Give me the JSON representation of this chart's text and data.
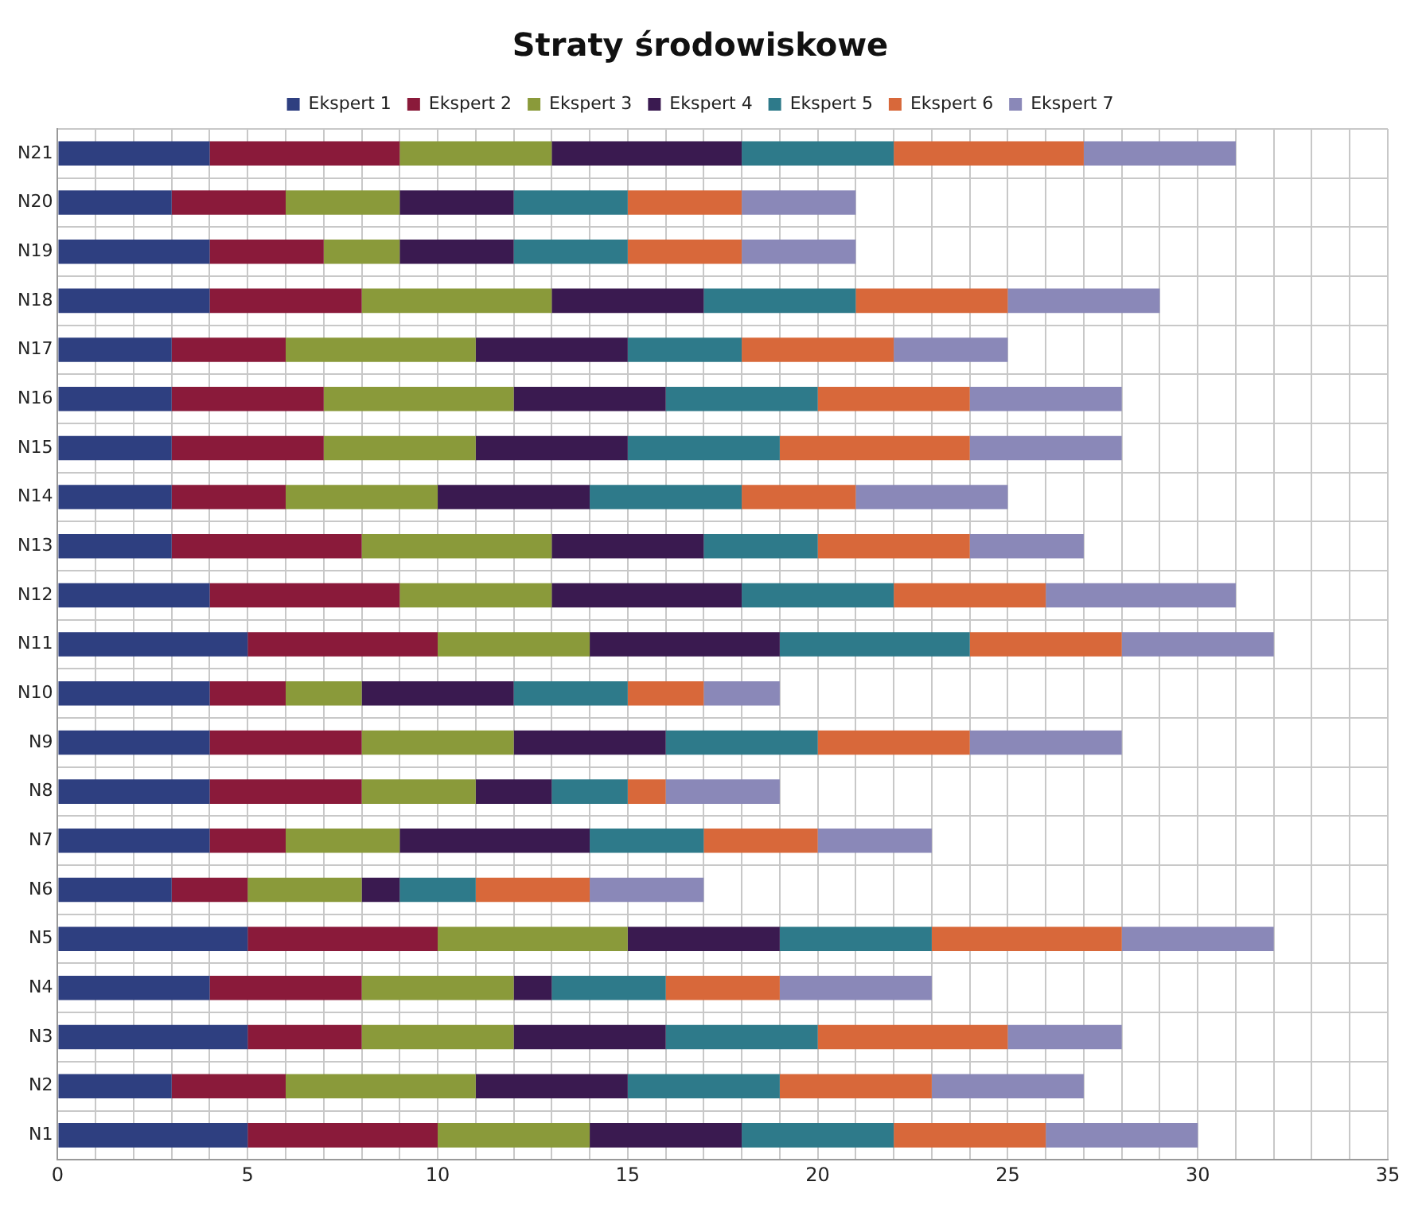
{
  "chart_data": {
    "type": "bar",
    "orientation": "horizontal",
    "stacked": true,
    "title": "Straty środowiskowe",
    "legend": "top",
    "grid": true,
    "categories": [
      "N21",
      "N20",
      "N19",
      "N18",
      "N17",
      "N16",
      "N15",
      "N14",
      "N13",
      "N12",
      "N11",
      "N10",
      "N9",
      "N8",
      "N7",
      "N6",
      "N5",
      "N4",
      "N3",
      "N2",
      "N1"
    ],
    "xlim": [
      0,
      35
    ],
    "xticks": [
      0,
      {
        "value": 1,
        "label": null
      },
      {
        "value": 2,
        "label": null
      },
      {
        "value": 3,
        "label": null
      },
      {
        "value": 4,
        "label": null
      },
      5,
      {
        "value": 6,
        "label": null
      },
      {
        "value": 7,
        "label": null
      },
      {
        "value": 8,
        "label": null
      },
      {
        "value": 9,
        "label": null
      },
      10,
      {
        "value": 11,
        "label": null
      },
      {
        "value": 12,
        "label": null
      },
      {
        "value": 13,
        "label": null
      },
      {
        "value": 14,
        "label": null
      },
      15,
      {
        "value": 16,
        "label": null
      },
      {
        "value": 17,
        "label": null
      },
      {
        "value": 18,
        "label": null
      },
      {
        "value": 19,
        "label": null
      },
      20,
      {
        "value": 21,
        "label": null
      },
      {
        "value": 22,
        "label": null
      },
      {
        "value": 23,
        "label": null
      },
      {
        "value": 24,
        "label": null
      },
      25,
      {
        "value": 26,
        "label": null
      },
      {
        "value": 27,
        "label": null
      },
      {
        "value": 28,
        "label": null
      },
      {
        "value": 29,
        "label": null
      },
      30,
      {
        "value": 31,
        "label": null
      },
      {
        "value": 32,
        "label": null
      },
      {
        "value": 33,
        "label": null
      },
      {
        "value": 34,
        "label": null
      },
      35
    ],
    "series": [
      {
        "name": "Ekspert 1",
        "color": "#2e3f80",
        "values": [
          4,
          3,
          4,
          4,
          3,
          3,
          3,
          3,
          3,
          4,
          5,
          4,
          4,
          4,
          4,
          3,
          5,
          4,
          5,
          3,
          5
        ]
      },
      {
        "name": "Ekspert 2",
        "color": "#8a1a3a",
        "values": [
          5,
          3,
          3,
          4,
          3,
          4,
          4,
          3,
          5,
          5,
          5,
          2,
          4,
          4,
          2,
          2,
          5,
          4,
          3,
          3,
          5
        ]
      },
      {
        "name": "Ekspert 3",
        "color": "#8a9a3a",
        "values": [
          4,
          3,
          2,
          5,
          5,
          5,
          4,
          4,
          5,
          4,
          4,
          2,
          4,
          3,
          3,
          3,
          5,
          4,
          4,
          5,
          4
        ]
      },
      {
        "name": "Ekspert 4",
        "color": "#3a1a50",
        "values": [
          5,
          3,
          3,
          4,
          4,
          4,
          4,
          4,
          4,
          5,
          5,
          4,
          4,
          2,
          5,
          1,
          4,
          1,
          4,
          4,
          4
        ]
      },
      {
        "name": "Ekspert 5",
        "color": "#2e7a8a",
        "values": [
          4,
          3,
          3,
          4,
          3,
          4,
          4,
          4,
          3,
          4,
          5,
          3,
          4,
          2,
          3,
          2,
          4,
          3,
          4,
          4,
          4
        ]
      },
      {
        "name": "Ekspert 6",
        "color": "#d8683a",
        "values": [
          5,
          3,
          3,
          4,
          4,
          4,
          5,
          3,
          4,
          4,
          4,
          2,
          4,
          1,
          3,
          3,
          5,
          3,
          5,
          4,
          4
        ]
      },
      {
        "name": "Ekspert 7",
        "color": "#8a88b8",
        "values": [
          4,
          3,
          3,
          4,
          3,
          4,
          4,
          4,
          3,
          5,
          4,
          2,
          4,
          3,
          3,
          3,
          4,
          4,
          3,
          4,
          4
        ]
      }
    ]
  }
}
